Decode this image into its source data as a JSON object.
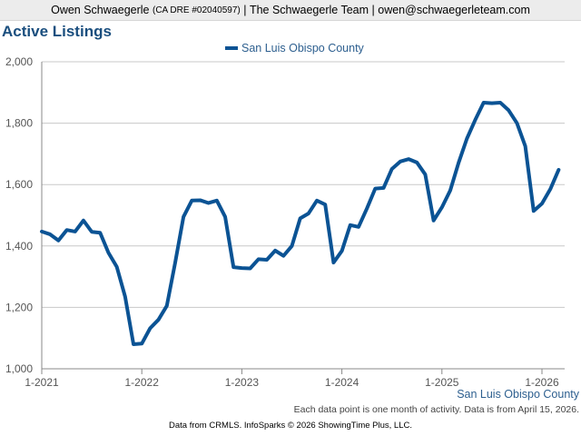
{
  "header": {
    "agent_name": "Owen Schwaegerle",
    "dre": "(CA DRE #02040597)",
    "sep1": "|",
    "team": "The Schwaegerle Team",
    "sep2": "|",
    "email": "owen@schwaegerleteam.com"
  },
  "chart_data": {
    "type": "line",
    "title": "Active Listings",
    "xlabel": "",
    "ylabel": "",
    "ylim": [
      1000,
      2000
    ],
    "y_ticks": [
      "1,000",
      "1,200",
      "1,400",
      "1,600",
      "1,800",
      "2,000"
    ],
    "x_tick_labels": [
      "1-2021",
      "1-2022",
      "1-2023",
      "1-2024",
      "1-2025",
      "1-2026"
    ],
    "legend_position": "top-center",
    "grid": true,
    "series": [
      {
        "name": "San Luis Obispo County",
        "color": "#0b5394",
        "x_start": "2021-01",
        "values": [
          1447,
          1438,
          1418,
          1452,
          1447,
          1483,
          1446,
          1443,
          1378,
          1332,
          1235,
          1080,
          1082,
          1132,
          1160,
          1205,
          1345,
          1495,
          1548,
          1549,
          1540,
          1548,
          1495,
          1331,
          1328,
          1327,
          1357,
          1355,
          1385,
          1368,
          1400,
          1490,
          1506,
          1548,
          1535,
          1346,
          1384,
          1468,
          1462,
          1522,
          1587,
          1589,
          1651,
          1675,
          1683,
          1672,
          1633,
          1483,
          1526,
          1581,
          1671,
          1750,
          1811,
          1867,
          1865,
          1867,
          1842,
          1800,
          1725,
          1514,
          1538,
          1585,
          1648
        ]
      }
    ]
  },
  "footer": {
    "region_label": "San Luis Obispo County",
    "note": "Each data point is one month of activity. Data is from April 15, 2026.",
    "source": "Data from CRMLS. InfoSparks © 2026 ShowingTime Plus, LLC."
  }
}
